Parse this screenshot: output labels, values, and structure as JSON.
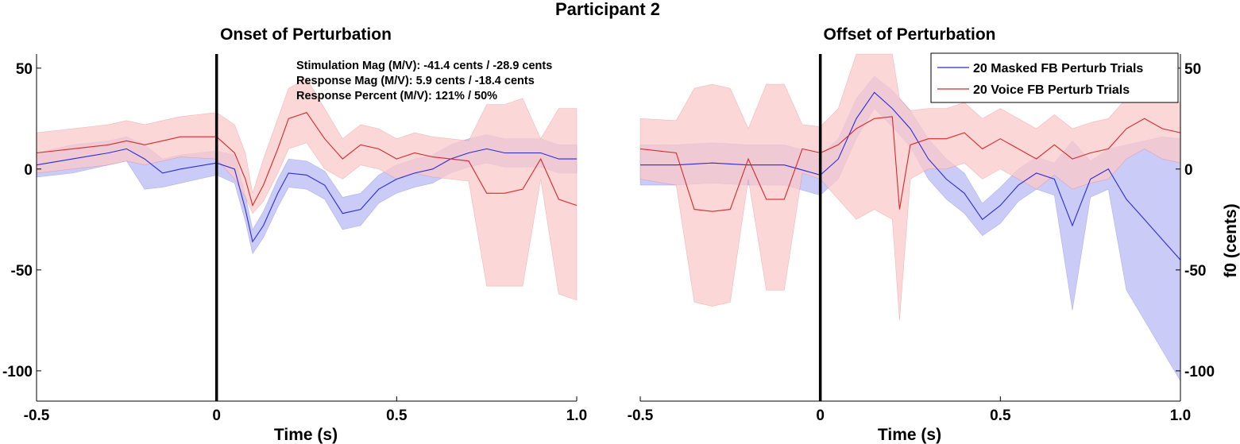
{
  "figure_title": "Participant 2",
  "chart_data": [
    {
      "type": "line",
      "title": "Onset of Perturbation",
      "xlabel": "Time (s)",
      "ylabel": "",
      "xlim": [
        -0.5,
        1.0
      ],
      "ylim": [
        -115,
        57
      ],
      "x_ticks": [
        "-0.5",
        "0",
        "0.5",
        "1.0"
      ],
      "y_ticks": [
        "50",
        "0",
        "-50",
        "-100"
      ],
      "event_line_x": 0,
      "annotations": [
        "Stimulation Mag  (M/V): -41.4 cents / -28.9 cents",
        "Response Mag (M/V): 5.9 cents / -18.4 cents",
        "Response Percent (M/V): 121% / 50%"
      ],
      "series": [
        {
          "name": "20 Masked FB Perturb Trials",
          "color": "#2b2bd6",
          "band_color": "#b9b9f5",
          "x": [
            -0.5,
            -0.4,
            -0.3,
            -0.25,
            -0.2,
            -0.15,
            -0.1,
            0.0,
            0.05,
            0.08,
            0.1,
            0.13,
            0.17,
            0.2,
            0.25,
            0.3,
            0.35,
            0.4,
            0.45,
            0.5,
            0.55,
            0.6,
            0.65,
            0.7,
            0.75,
            0.8,
            0.85,
            0.9,
            0.95,
            1.0
          ],
          "mean": [
            2,
            5,
            8,
            10,
            5,
            -2,
            0,
            3,
            0,
            -20,
            -36,
            -28,
            -12,
            -2,
            -3,
            -8,
            -22,
            -20,
            -10,
            -5,
            -2,
            0,
            5,
            8,
            10,
            8,
            8,
            8,
            5,
            5
          ],
          "lower": [
            -4,
            -2,
            2,
            4,
            -10,
            -9,
            -7,
            -3,
            -7,
            -26,
            -42,
            -34,
            -19,
            -9,
            -10,
            -15,
            -30,
            -28,
            -17,
            -12,
            -9,
            -7,
            -2,
            1,
            3,
            1,
            1,
            1,
            -2,
            -2
          ],
          "upper": [
            8,
            12,
            14,
            16,
            12,
            5,
            7,
            9,
            7,
            -13,
            -30,
            -21,
            -5,
            5,
            4,
            -1,
            -14,
            -12,
            -3,
            2,
            5,
            7,
            12,
            15,
            17,
            15,
            15,
            15,
            12,
            12
          ]
        },
        {
          "name": "20 Voice FB Perturb Trials",
          "color": "#d42a2a",
          "band_color": "#fbc9c9",
          "x": [
            -0.5,
            -0.4,
            -0.3,
            -0.25,
            -0.2,
            -0.15,
            -0.1,
            0.0,
            0.05,
            0.08,
            0.1,
            0.13,
            0.17,
            0.2,
            0.25,
            0.3,
            0.35,
            0.4,
            0.45,
            0.5,
            0.55,
            0.6,
            0.65,
            0.7,
            0.75,
            0.8,
            0.85,
            0.9,
            0.95,
            1.0
          ],
          "mean": [
            8,
            10,
            12,
            14,
            12,
            14,
            16,
            16,
            8,
            -5,
            -18,
            -8,
            10,
            25,
            28,
            15,
            5,
            12,
            10,
            5,
            8,
            6,
            5,
            4,
            -12,
            -12,
            -10,
            5,
            -15,
            -18
          ],
          "lower": [
            -2,
            0,
            2,
            4,
            2,
            4,
            6,
            5,
            -5,
            -14,
            -22,
            -16,
            -2,
            10,
            13,
            0,
            -5,
            2,
            0,
            -5,
            -2,
            -4,
            -5,
            -6,
            -58,
            -58,
            -58,
            -5,
            -62,
            -65
          ],
          "upper": [
            18,
            20,
            22,
            24,
            22,
            24,
            26,
            28,
            22,
            8,
            -12,
            5,
            25,
            40,
            45,
            30,
            15,
            22,
            20,
            15,
            18,
            16,
            15,
            14,
            32,
            32,
            35,
            15,
            30,
            30
          ]
        }
      ]
    },
    {
      "type": "line",
      "title": "Offset of Perturbation",
      "xlabel": "Time (s)",
      "ylabel": "f0 (cents)",
      "xlim": [
        -0.5,
        1.0
      ],
      "ylim": [
        -115,
        57
      ],
      "x_ticks": [
        "-0.5",
        "0",
        "0.5",
        "1.0"
      ],
      "y_ticks": [
        "50",
        "0",
        "-50",
        "-100"
      ],
      "event_line_x": 0,
      "series": [
        {
          "name": "20 Masked FB Perturb Trials",
          "color": "#2b2bd6",
          "band_color": "#b9b9f5",
          "x": [
            -0.5,
            -0.4,
            -0.3,
            -0.2,
            -0.1,
            0.0,
            0.05,
            0.1,
            0.15,
            0.2,
            0.25,
            0.3,
            0.35,
            0.4,
            0.45,
            0.5,
            0.55,
            0.6,
            0.65,
            0.7,
            0.75,
            0.8,
            0.85,
            0.9,
            0.95,
            1.0
          ],
          "mean": [
            2,
            2,
            3,
            2,
            2,
            -3,
            5,
            25,
            38,
            30,
            20,
            5,
            -5,
            -12,
            -25,
            -18,
            -8,
            -2,
            -5,
            -28,
            -5,
            0,
            -15,
            -25,
            -35,
            -45
          ],
          "lower": [
            -8,
            -8,
            -7,
            -8,
            -8,
            -13,
            -5,
            15,
            30,
            21,
            11,
            -5,
            -15,
            -22,
            -33,
            -27,
            -16,
            -10,
            -13,
            -70,
            -14,
            -10,
            -60,
            -75,
            -90,
            -105
          ],
          "upper": [
            12,
            12,
            13,
            12,
            12,
            7,
            15,
            35,
            46,
            39,
            29,
            15,
            5,
            -2,
            -17,
            -9,
            0,
            6,
            3,
            14,
            4,
            10,
            12,
            14,
            16,
            15
          ]
        },
        {
          "name": "20 Voice FB Perturb Trials",
          "color": "#d42a2a",
          "band_color": "#fbc9c9",
          "x": [
            -0.5,
            -0.4,
            -0.35,
            -0.3,
            -0.25,
            -0.2,
            -0.15,
            -0.1,
            -0.05,
            0.0,
            0.05,
            0.1,
            0.15,
            0.2,
            0.22,
            0.25,
            0.3,
            0.35,
            0.4,
            0.45,
            0.5,
            0.55,
            0.6,
            0.65,
            0.7,
            0.75,
            0.8,
            0.85,
            0.9,
            0.95,
            1.0
          ],
          "mean": [
            10,
            8,
            -20,
            -21,
            -20,
            5,
            -15,
            -15,
            10,
            8,
            12,
            20,
            25,
            26,
            -20,
            12,
            15,
            15,
            18,
            10,
            15,
            10,
            5,
            12,
            5,
            8,
            10,
            20,
            25,
            20,
            18
          ],
          "lower": [
            -5,
            -8,
            -66,
            -68,
            -66,
            -5,
            -60,
            -60,
            -2,
            -5,
            -15,
            -25,
            -20,
            -25,
            -75,
            -5,
            0,
            0,
            3,
            -5,
            0,
            -5,
            -10,
            -3,
            -10,
            -7,
            -5,
            5,
            10,
            5,
            3
          ],
          "upper": [
            25,
            24,
            40,
            42,
            40,
            20,
            42,
            42,
            22,
            21,
            30,
            57,
            57,
            57,
            35,
            29,
            30,
            30,
            33,
            25,
            30,
            25,
            20,
            27,
            20,
            23,
            25,
            35,
            40,
            35,
            33
          ]
        }
      ]
    }
  ]
}
